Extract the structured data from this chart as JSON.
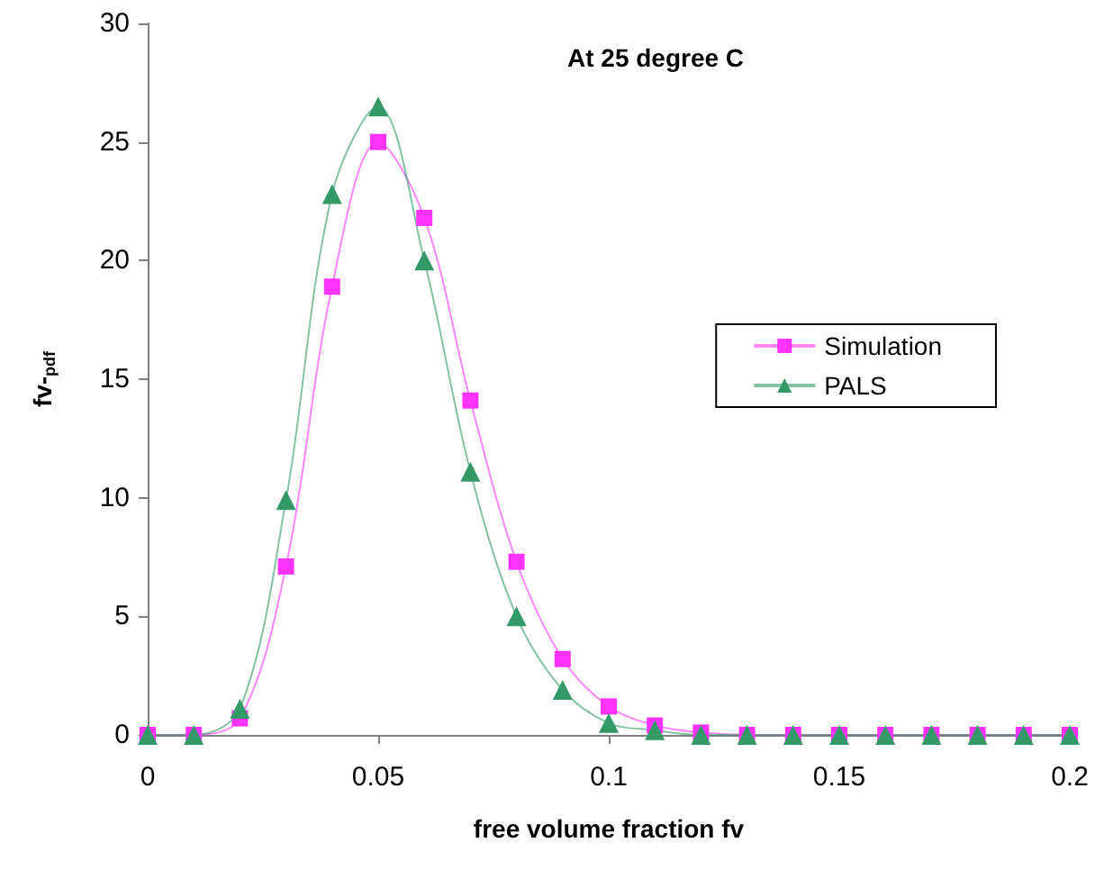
{
  "chart_data": {
    "type": "line",
    "title": "At 25 degree C",
    "xlabel": "free volume fraction fv",
    "ylabel": "fv-$_{pdf}$",
    "x": [
      0,
      0.01,
      0.02,
      0.03,
      0.04,
      0.05,
      0.06,
      0.07,
      0.08,
      0.09,
      0.1,
      0.11,
      0.12,
      0.13,
      0.14,
      0.15,
      0.16,
      0.17,
      0.18,
      0.19,
      0.2
    ],
    "series": [
      {
        "name": "Simulation",
        "color": "#ff33ff",
        "marker": "square",
        "values": [
          0,
          0,
          0.7,
          7.1,
          18.9,
          25.0,
          21.8,
          14.1,
          7.3,
          3.2,
          1.2,
          0.4,
          0.1,
          0,
          0,
          0,
          0,
          0,
          0,
          0,
          0
        ]
      },
      {
        "name": "PALS",
        "color": "#339966",
        "marker": "triangle",
        "values": [
          0,
          0,
          1.1,
          9.9,
          22.8,
          26.5,
          20.0,
          11.1,
          5.0,
          1.9,
          0.5,
          0.2,
          0,
          0,
          0,
          0,
          0,
          0,
          0,
          0,
          0
        ]
      }
    ],
    "xlim": [
      0,
      0.2
    ],
    "xticks": [
      0,
      0.05,
      0.1,
      0.15,
      0.2
    ],
    "ylim": [
      0,
      30
    ],
    "yticks": [
      0,
      5,
      10,
      15,
      20,
      25,
      30
    ],
    "grid": false,
    "legend": "right"
  }
}
